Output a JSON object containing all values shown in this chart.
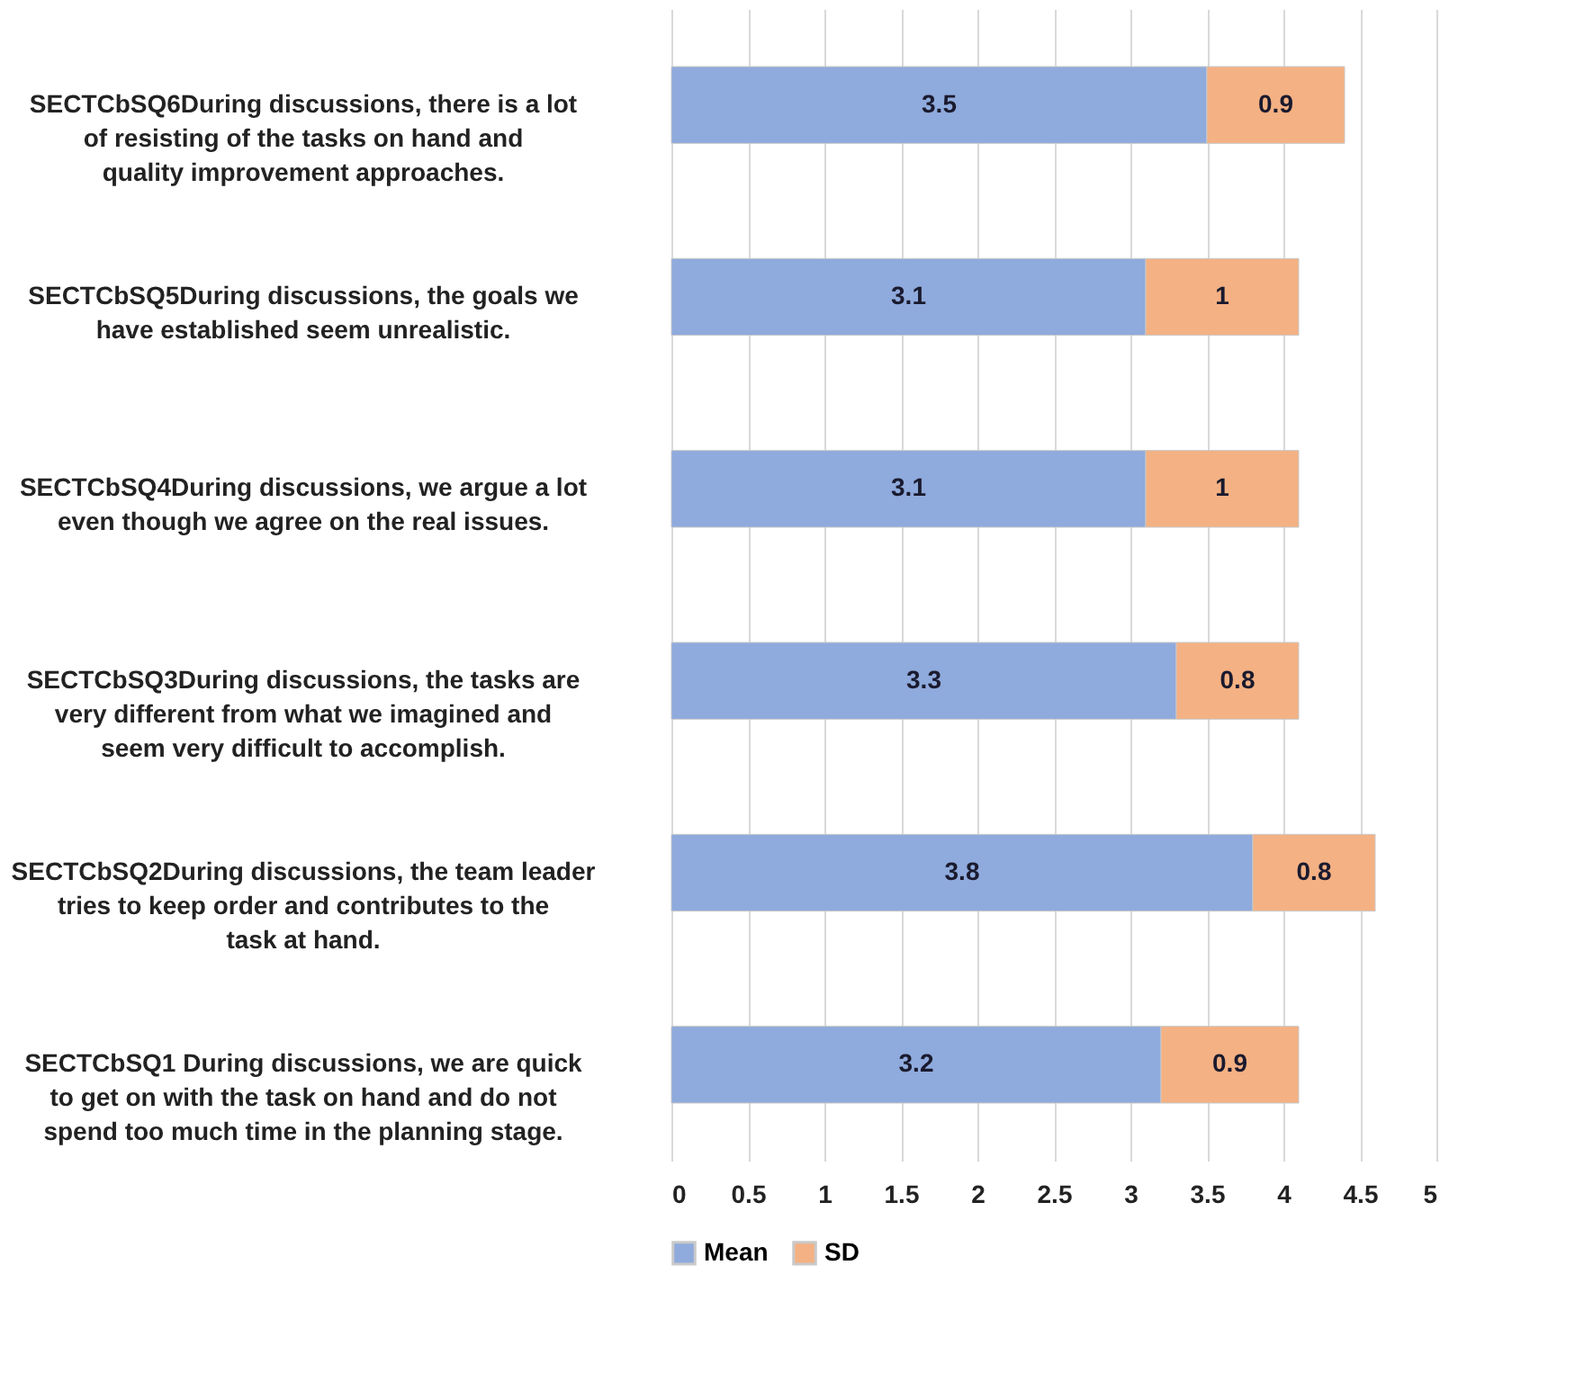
{
  "chart_data": {
    "type": "bar",
    "orientation": "horizontal",
    "stacked": true,
    "categories": [
      "SECTCbSQ6During discussions, there is a lot of resisting of the tasks on hand and quality improvement approaches.",
      "SECTCbSQ5During discussions, the goals we have established seem unrealistic.",
      "SECTCbSQ4During discussions, we argue a lot even though we agree on the real issues.",
      "SECTCbSQ3During discussions, the tasks are very different from what we imagined and seem very difficult to accomplish.",
      "SECTCbSQ2During discussions, the team leader tries to keep order and contributes to the task at hand.",
      "SECTCbSQ1   During discussions, we are quick to get on with the task on hand and do not spend too much time in the planning stage."
    ],
    "series": [
      {
        "name": "Mean",
        "color": "#8faadc",
        "values": [
          3.5,
          3.1,
          3.1,
          3.3,
          3.8,
          3.2
        ]
      },
      {
        "name": "SD",
        "color": "#f4b183",
        "values": [
          0.9,
          1,
          1,
          0.8,
          0.8,
          0.9
        ]
      }
    ],
    "xlim": [
      0,
      5
    ],
    "xticks": [
      0,
      0.5,
      1,
      1.5,
      2,
      2.5,
      3,
      3.5,
      4,
      4.5,
      5
    ],
    "grid": "x",
    "legend": "bottom",
    "data_labels": true
  }
}
